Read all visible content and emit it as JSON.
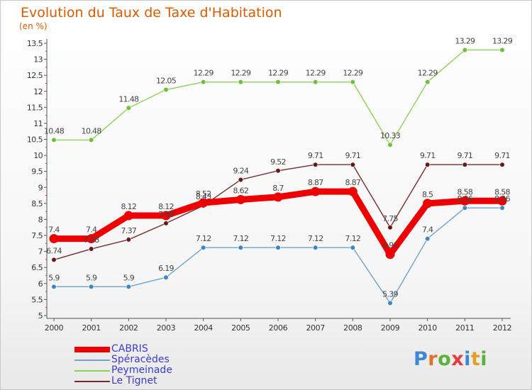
{
  "title": "Evolution du Taux de Taxe d'Habitation",
  "unit_label": "(en %)",
  "logo": {
    "text": "Proxiti",
    "letters": [
      {
        "ch": "P",
        "color": "#3d86d8"
      },
      {
        "ch": "r",
        "color": "#e0702a"
      },
      {
        "ch": "o",
        "color": "#5cb03c"
      },
      {
        "ch": "x",
        "color": "#e83a3a"
      },
      {
        "ch": "i",
        "color": "#3d86d8"
      },
      {
        "ch": "t",
        "color": "#e0a02a"
      },
      {
        "ch": "i",
        "color": "#5cb03c"
      }
    ]
  },
  "chart_data": {
    "type": "line",
    "x": [
      2000,
      2001,
      2002,
      2003,
      2004,
      2005,
      2006,
      2007,
      2008,
      2009,
      2010,
      2011,
      2012
    ],
    "ylim": [
      5,
      13.5
    ],
    "yticks": [
      5,
      5.5,
      6,
      6.5,
      7,
      7.5,
      8,
      8.5,
      9,
      9.5,
      10,
      10.5,
      11,
      11.5,
      12,
      12.5,
      13,
      13.5
    ],
    "grid": false,
    "legend_position": "bottom-left",
    "series": [
      {
        "name": "Peymeinade",
        "color": "#8fd05a",
        "marker": "#6cc03a",
        "width": 1.4,
        "dot": 3.3,
        "values": [
          10.48,
          10.48,
          11.48,
          12.05,
          12.29,
          12.29,
          12.29,
          12.29,
          12.29,
          10.33,
          12.29,
          13.29,
          13.29
        ],
        "labels": [
          "10.48",
          "10.48",
          "11.48",
          "12.05",
          "12.29",
          "12.29",
          "12.29",
          "12.29",
          "12.29",
          "10.33",
          "12.29",
          "13.29",
          "13.29"
        ]
      },
      {
        "name": "Le Tignet",
        "color": "#7a2c2c",
        "marker": "#6a1616",
        "width": 1.4,
        "dot": 3.3,
        "values": [
          6.74,
          7.08,
          7.37,
          7.88,
          8.43,
          9.24,
          9.52,
          9.71,
          9.71,
          7.75,
          9.71,
          9.71,
          9.71
        ],
        "labels": [
          "6.74",
          "7.08",
          "7.37",
          "7.88",
          "8.43",
          "9.24",
          "9.52",
          "9.71",
          "9.71",
          "7.75",
          "9.71",
          "9.71",
          "9.71"
        ]
      },
      {
        "name": "Spéracèdes",
        "color": "#6fa3cc",
        "marker": "#3a85c8",
        "width": 1.4,
        "dot": 3.3,
        "values": [
          5.9,
          5.9,
          5.9,
          6.19,
          7.12,
          7.12,
          7.12,
          7.12,
          7.12,
          5.39,
          7.4,
          8.36,
          8.36
        ],
        "labels": [
          "5.9",
          "5.9",
          "5.9",
          "6.19",
          "7.12",
          "7.12",
          "7.12",
          "7.12",
          "7.12",
          "5.39",
          "7.4",
          "8.36",
          "8.36"
        ]
      },
      {
        "name": "CABRIS",
        "color": "#ee0000",
        "marker": "#ee0000",
        "width": 9,
        "dot": 6.5,
        "values": [
          7.4,
          7.4,
          8.12,
          8.12,
          8.52,
          8.62,
          8.7,
          8.87,
          8.87,
          6.91,
          8.5,
          8.58,
          8.58
        ],
        "labels": [
          "7.4",
          "7.4",
          "8.12",
          "8.12",
          "8.52",
          "8.62",
          "8.7",
          "8.87",
          "8.87",
          "6.91",
          "8.5",
          "8.58",
          "8.58"
        ]
      }
    ],
    "legend_order": [
      "CABRIS",
      "Spéracèdes",
      "Peymeinade",
      "Le Tignet"
    ]
  }
}
